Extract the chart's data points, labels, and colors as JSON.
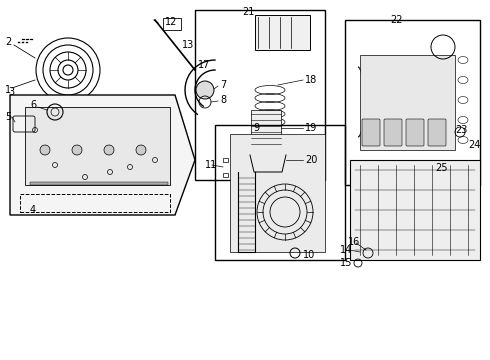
{
  "bg_color": "#ffffff",
  "fig_width": 4.9,
  "fig_height": 3.6,
  "dpi": 100,
  "line_color": "#000000",
  "font_size": 7
}
